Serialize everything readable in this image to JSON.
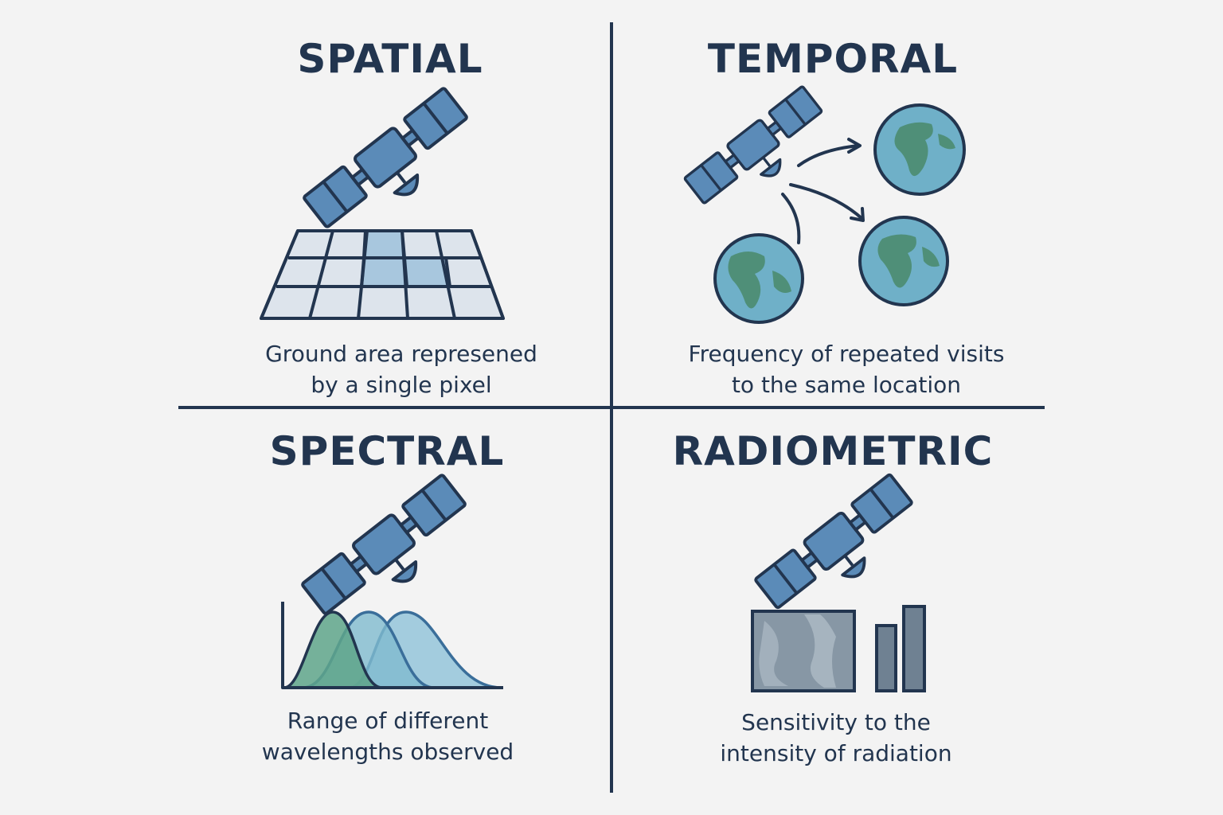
{
  "quadrants": {
    "spatial": {
      "title": "SPATIAL",
      "caption_line1": "Ground area represened",
      "caption_line2": "by a single pixel"
    },
    "temporal": {
      "title": "TEMPORAL",
      "caption_line1": "Frequency of repeated visits",
      "caption_line2": "to the same location"
    },
    "spectral": {
      "title": "SPECTRAL",
      "caption_line1": "Range of different",
      "caption_line2": "wavelengths observed"
    },
    "radiometric": {
      "title": "RADIOMETRIC",
      "caption_line1": "Sensitivity to the",
      "caption_line2": "intensity of radiation"
    }
  },
  "colors": {
    "ink": "#22354f",
    "panel_blue": "#5b8bb8",
    "globe_ocean": "#6fb0c8",
    "globe_land": "#4f8f78",
    "grid_cell": "#dde4ec",
    "grid_highlight": "#a8c7de",
    "curve_green": "#5ea58a",
    "curve_teal": "#7fbace",
    "curve_blue": "#8fc2d8",
    "image_gray": "#8797a5",
    "bar_gray": "#6f8192"
  }
}
